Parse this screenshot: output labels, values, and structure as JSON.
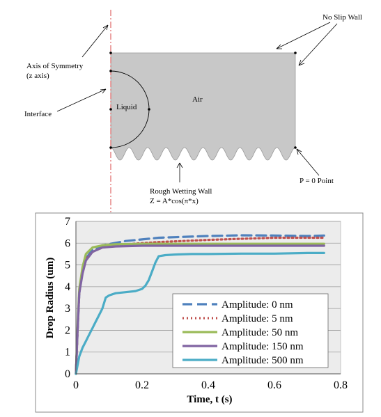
{
  "diagram": {
    "labels": {
      "no_slip_wall": "No Slip Wall",
      "axis_of_symmetry": "Axis of Symmetry",
      "z_axis": "(z axis)",
      "interface": "Interface",
      "liquid": "Liquid",
      "air": "Air",
      "p_zero": "P = 0 Point",
      "rough_wall": "Rough Wetting Wall",
      "rough_eq": "Z = A*cos(π*x)"
    },
    "colors": {
      "domain_fill": "#c8c8c8",
      "symmetry_axis": "#e06666"
    }
  },
  "chart_data": {
    "type": "line",
    "xlabel": "Time, t (s)",
    "ylabel": "Drop Radius (um)",
    "xlim": [
      0,
      0.8
    ],
    "ylim": [
      0,
      7
    ],
    "xticks": [
      "0",
      "0.2",
      "0.4",
      "0.6",
      "0.8"
    ],
    "yticks": [
      "0",
      "1",
      "2",
      "3",
      "4",
      "5",
      "6",
      "7"
    ],
    "grid": true,
    "legend": "bottom-right",
    "series": [
      {
        "name": "Amplitude: 0 nm",
        "color": "#4f81bd",
        "dash": "14,7",
        "x": [
          0,
          0.005,
          0.01,
          0.02,
          0.03,
          0.05,
          0.08,
          0.15,
          0.25,
          0.4,
          0.5,
          0.6,
          0.7,
          0.75
        ],
        "y": [
          0,
          2.0,
          3.7,
          4.8,
          5.3,
          5.7,
          5.9,
          6.1,
          6.25,
          6.33,
          6.36,
          6.35,
          6.33,
          6.35
        ]
      },
      {
        "name": "Amplitude: 5 nm",
        "color": "#c0504d",
        "dash": "2,4",
        "x": [
          0,
          0.005,
          0.01,
          0.02,
          0.03,
          0.05,
          0.08,
          0.15,
          0.25,
          0.4,
          0.5,
          0.6,
          0.7,
          0.75
        ],
        "y": [
          0,
          2.0,
          3.7,
          4.8,
          5.25,
          5.6,
          5.8,
          5.95,
          6.05,
          6.15,
          6.2,
          6.25,
          6.25,
          6.25
        ]
      },
      {
        "name": "Amplitude: 50 nm",
        "color": "#9bbb59",
        "dash": "",
        "x": [
          0,
          0.005,
          0.01,
          0.02,
          0.03,
          0.05,
          0.08,
          0.12,
          0.2,
          0.3,
          0.4,
          0.6,
          0.75
        ],
        "y": [
          0,
          2.2,
          3.9,
          4.9,
          5.5,
          5.8,
          5.9,
          5.95,
          5.97,
          5.97,
          5.97,
          5.97,
          5.97
        ]
      },
      {
        "name": "Amplitude: 150 nm",
        "color": "#8064a2",
        "dash": "",
        "x": [
          0,
          0.005,
          0.01,
          0.02,
          0.03,
          0.05,
          0.08,
          0.12,
          0.2,
          0.3,
          0.4,
          0.6,
          0.75
        ],
        "y": [
          0,
          2.0,
          3.7,
          4.6,
          5.2,
          5.6,
          5.8,
          5.85,
          5.88,
          5.88,
          5.88,
          5.88,
          5.88
        ]
      },
      {
        "name": "Amplitude: 500 nm",
        "color": "#4bacc6",
        "dash": "",
        "x": [
          0,
          0.01,
          0.02,
          0.03,
          0.04,
          0.05,
          0.06,
          0.07,
          0.08,
          0.09,
          0.1,
          0.12,
          0.15,
          0.18,
          0.2,
          0.21,
          0.22,
          0.23,
          0.24,
          0.25,
          0.27,
          0.3,
          0.35,
          0.4,
          0.5,
          0.6,
          0.7,
          0.75
        ],
        "y": [
          0,
          0.8,
          1.2,
          1.5,
          1.8,
          2.1,
          2.4,
          2.7,
          3.0,
          3.5,
          3.6,
          3.7,
          3.75,
          3.8,
          3.9,
          4.05,
          4.3,
          4.7,
          5.1,
          5.4,
          5.45,
          5.48,
          5.5,
          5.5,
          5.52,
          5.52,
          5.55,
          5.55
        ]
      }
    ]
  }
}
